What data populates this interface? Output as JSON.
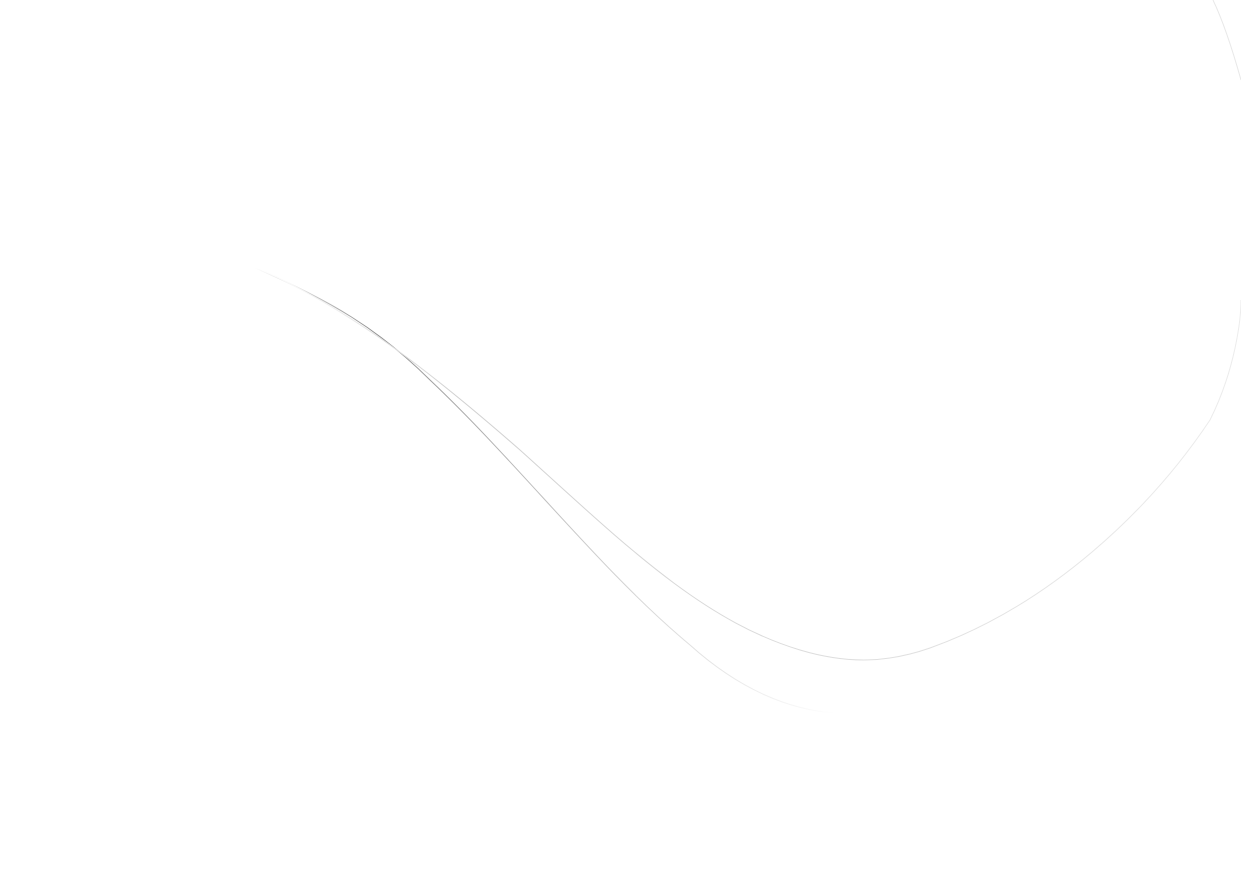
{
  "page": {
    "background_color": "#ffffff",
    "decoration": {
      "type": "wave-lines",
      "colors": {
        "dark_line": "#9a9a9a",
        "light_line": "#e2e2e2",
        "faint_line": "#f0f0f0"
      }
    }
  }
}
